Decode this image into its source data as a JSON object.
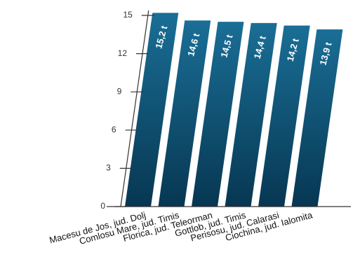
{
  "chart_data": {
    "type": "bar",
    "categories": [
      "Macesu de Jos, jud. Dolj",
      "Comlosu Mare, jud. Timis",
      "Florica, jud. Teleorman",
      "Gottlob, jud. Timis",
      "Perisosu, jud. Calarasi",
      "Ciochina, jud. Ialomita"
    ],
    "values": [
      15.2,
      14.6,
      14.5,
      14.4,
      14.2,
      13.9
    ],
    "data_labels": [
      "15,2 t",
      "14,6 t",
      "14,5 t",
      "14,4 t",
      "14,2 t",
      "13,9 t"
    ],
    "y_ticks": [
      "0",
      "3",
      "6",
      "9",
      "12",
      "15"
    ],
    "ylim": [
      0,
      15
    ],
    "title": "",
    "xlabel": "",
    "ylabel": "",
    "grid": false,
    "legend": "none",
    "colors": {
      "bar_top": "#1a6e96",
      "bar_bottom": "#073752",
      "axis": "#333333"
    }
  }
}
